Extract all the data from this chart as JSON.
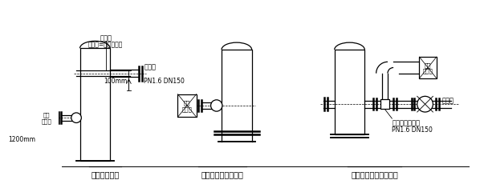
{
  "background_color": "#ffffff",
  "label1": "常用安装方式",
  "label2": "人孔盖上的安装方式",
  "label3": "回油管线上的安装方式",
  "annot_buqiang1": "补强圈",
  "annot_buqiang2": "（厚度=筒体壁厚）",
  "annot_flange": "管法兰",
  "annot_pn": "PN1.6 DN150",
  "annot_100mm": "100mm",
  "annot_1200mm": "1200mm",
  "annot_tee1": "三通（管法兰）",
  "annot_tee2": "PN1.6 DN150",
  "annot_valve": "调节阀",
  "sampler_label": "采样\n控制框",
  "text_color": "#000000",
  "line_color": "#000000"
}
